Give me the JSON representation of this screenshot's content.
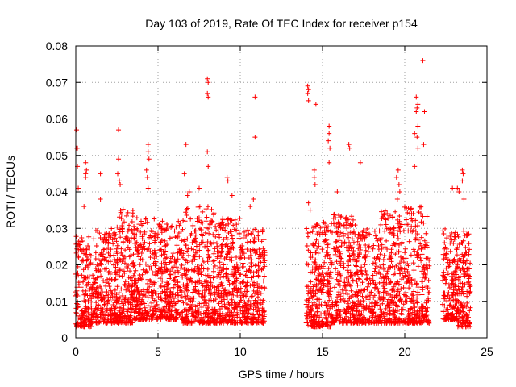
{
  "chart_data": {
    "type": "scatter",
    "title": "Day 103 of 2019, Rate Of TEC Index for receiver p154",
    "xlabel": "GPS time / hours",
    "ylabel": "ROTI / TECUs",
    "xlim": [
      0,
      25
    ],
    "ylim": [
      0,
      0.08
    ],
    "x_ticks": [
      0,
      5,
      10,
      15,
      20,
      25
    ],
    "x_tick_labels": [
      "0",
      "5",
      "10",
      "15",
      "20",
      "25"
    ],
    "y_ticks": [
      0,
      0.01,
      0.02,
      0.03,
      0.04,
      0.05,
      0.06,
      0.07,
      0.08
    ],
    "y_tick_labels": [
      "0",
      "0.01",
      "0.02",
      "0.03",
      "0.04",
      "0.05",
      "0.06",
      "0.07",
      "0.08"
    ],
    "grid": true,
    "marker": "+",
    "color": "#ff0000",
    "data_gap_hours": [
      11.5,
      14.0
    ],
    "series": [
      {
        "name": "p154",
        "points": [
          [
            0.05,
            0.057
          ],
          [
            0.05,
            0.052
          ],
          [
            0.1,
            0.052
          ],
          [
            0.1,
            0.047
          ],
          [
            0.15,
            0.041
          ],
          [
            0.6,
            0.048
          ],
          [
            0.6,
            0.045
          ],
          [
            0.6,
            0.044
          ],
          [
            0.65,
            0.046
          ],
          [
            0.5,
            0.036
          ],
          [
            1.5,
            0.045
          ],
          [
            1.5,
            0.038
          ],
          [
            2.6,
            0.057
          ],
          [
            2.6,
            0.049
          ],
          [
            2.55,
            0.045
          ],
          [
            2.65,
            0.043
          ],
          [
            2.7,
            0.042
          ],
          [
            4.4,
            0.053
          ],
          [
            4.4,
            0.051
          ],
          [
            4.45,
            0.049
          ],
          [
            4.3,
            0.046
          ],
          [
            4.35,
            0.044
          ],
          [
            4.4,
            0.041
          ],
          [
            6.7,
            0.053
          ],
          [
            6.6,
            0.045
          ],
          [
            6.9,
            0.04
          ],
          [
            6.8,
            0.039
          ],
          [
            7.5,
            0.041
          ],
          [
            8.0,
            0.071
          ],
          [
            8.05,
            0.07
          ],
          [
            8.0,
            0.067
          ],
          [
            8.05,
            0.066
          ],
          [
            8.0,
            0.051
          ],
          [
            8.05,
            0.047
          ],
          [
            9.2,
            0.044
          ],
          [
            9.25,
            0.043
          ],
          [
            9.5,
            0.039
          ],
          [
            10.9,
            0.066
          ],
          [
            10.9,
            0.055
          ],
          [
            10.8,
            0.038
          ],
          [
            10.6,
            0.036
          ],
          [
            14.1,
            0.069
          ],
          [
            14.15,
            0.068
          ],
          [
            14.1,
            0.067
          ],
          [
            14.15,
            0.065
          ],
          [
            14.6,
            0.064
          ],
          [
            14.5,
            0.046
          ],
          [
            14.5,
            0.044
          ],
          [
            14.55,
            0.042
          ],
          [
            14.15,
            0.037
          ],
          [
            14.25,
            0.035
          ],
          [
            15.4,
            0.058
          ],
          [
            15.4,
            0.056
          ],
          [
            15.35,
            0.054
          ],
          [
            15.45,
            0.052
          ],
          [
            15.4,
            0.048
          ],
          [
            15.9,
            0.04
          ],
          [
            16.6,
            0.053
          ],
          [
            16.65,
            0.052
          ],
          [
            17.3,
            0.048
          ],
          [
            19.6,
            0.046
          ],
          [
            19.5,
            0.044
          ],
          [
            19.65,
            0.042
          ],
          [
            19.7,
            0.04
          ],
          [
            19.55,
            0.038
          ],
          [
            20.7,
            0.066
          ],
          [
            20.8,
            0.064
          ],
          [
            20.75,
            0.063
          ],
          [
            20.7,
            0.062
          ],
          [
            20.8,
            0.058
          ],
          [
            20.6,
            0.056
          ],
          [
            20.75,
            0.055
          ],
          [
            20.8,
            0.052
          ],
          [
            21.1,
            0.076
          ],
          [
            21.2,
            0.062
          ],
          [
            21.15,
            0.053
          ],
          [
            20.6,
            0.047
          ],
          [
            23.5,
            0.046
          ],
          [
            23.55,
            0.045
          ],
          [
            23.5,
            0.043
          ],
          [
            23.3,
            0.04
          ],
          [
            23.6,
            0.038
          ],
          [
            22.9,
            0.041
          ],
          [
            23.2,
            0.041
          ]
        ],
        "density_profile_note": "Dense band of many hundreds of points from 0 to 11.5 h and 14 to 24 h, mostly 0.003 to 0.035",
        "dense_segments": [
          {
            "x_range": [
              0.0,
              1.0
            ],
            "y_range": [
              0.003,
              0.028
            ],
            "count": 180
          },
          {
            "x_range": [
              1.0,
              2.5
            ],
            "y_range": [
              0.004,
              0.03
            ],
            "count": 260
          },
          {
            "x_range": [
              2.5,
              3.5
            ],
            "y_range": [
              0.004,
              0.036
            ],
            "count": 200
          },
          {
            "x_range": [
              3.5,
              5.0
            ],
            "y_range": [
              0.005,
              0.033
            ],
            "count": 260
          },
          {
            "x_range": [
              5.0,
              6.5
            ],
            "y_range": [
              0.005,
              0.032
            ],
            "count": 260
          },
          {
            "x_range": [
              6.5,
              8.5
            ],
            "y_range": [
              0.004,
              0.036
            ],
            "count": 360
          },
          {
            "x_range": [
              8.5,
              10.0
            ],
            "y_range": [
              0.004,
              0.033
            ],
            "count": 280
          },
          {
            "x_range": [
              10.0,
              11.5
            ],
            "y_range": [
              0.004,
              0.03
            ],
            "count": 260
          },
          {
            "x_range": [
              14.0,
              15.5
            ],
            "y_range": [
              0.003,
              0.032
            ],
            "count": 280
          },
          {
            "x_range": [
              15.5,
              17.0
            ],
            "y_range": [
              0.004,
              0.034
            ],
            "count": 260
          },
          {
            "x_range": [
              17.0,
              18.5
            ],
            "y_range": [
              0.004,
              0.03
            ],
            "count": 240
          },
          {
            "x_range": [
              18.5,
              20.0
            ],
            "y_range": [
              0.004,
              0.035
            ],
            "count": 260
          },
          {
            "x_range": [
              20.0,
              21.5
            ],
            "y_range": [
              0.004,
              0.036
            ],
            "count": 260
          },
          {
            "x_range": [
              22.3,
              23.0
            ],
            "y_range": [
              0.005,
              0.03
            ],
            "count": 120
          },
          {
            "x_range": [
              23.0,
              24.0
            ],
            "y_range": [
              0.003,
              0.03
            ],
            "count": 180
          }
        ]
      }
    ]
  }
}
